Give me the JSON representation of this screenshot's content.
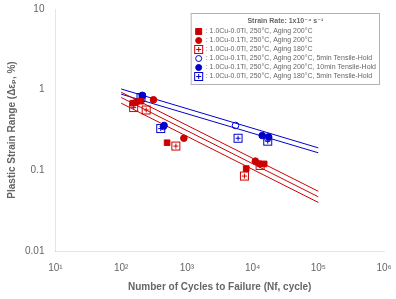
{
  "chart_data": {
    "type": "scatter",
    "xlabel": "Number of Cycles to Failure (Nf, cycle)",
    "ylabel": "Plastic Strain Range (Δεₚ, %)",
    "legend_title": "Strain Rate: 1x10⁻⁴ s⁻¹",
    "log": true,
    "grid": false,
    "legend": "upper right",
    "xlim": [
      10,
      1000000
    ],
    "ylim": [
      0.01,
      10
    ],
    "xticks": [
      {
        "value": 10,
        "label": "10¹"
      },
      {
        "value": 100,
        "label": "10²"
      },
      {
        "value": 1000,
        "label": "10³"
      },
      {
        "value": 10000,
        "label": "10⁴"
      },
      {
        "value": 100000,
        "label": "10⁵"
      },
      {
        "value": 1000000,
        "label": "10⁶"
      }
    ],
    "yticks": [
      0.01,
      0.1,
      1,
      10
    ],
    "series": [
      {
        "name": ": 1.0Cu-0.0Ti, 250°C, Aging 200°C",
        "color": "#cc0000",
        "marker": "filled_square",
        "x": [
          150,
          200,
          500,
          8000,
          15000
        ],
        "values": [
          0.68,
          0.72,
          0.22,
          0.105,
          0.12
        ]
      },
      {
        "name": ": 1.0Cu-0.1Ti, 250°C, Aging 200°C",
        "color": "#cc0000",
        "marker": "filled_circle",
        "x": [
          170,
          310,
          900,
          11000,
          13000
        ],
        "values": [
          0.7,
          0.75,
          0.25,
          0.13,
          0.12
        ]
      },
      {
        "name": ": 1.0Cu-0.0Ti, 250°C, Aging 180°C",
        "color": "#cc0000",
        "marker": "crossed_square",
        "x": [
          155,
          240,
          680,
          7500,
          13000
        ],
        "values": [
          0.6,
          0.56,
          0.2,
          0.085,
          0.115
        ]
      },
      {
        "name": ": 1.0Cu-0.1Ti, 250°C, Aging 200°C, 5min Tensile-Hold",
        "color": "#0000cc",
        "marker": "open_circle",
        "x": [
          210,
          440,
          5500,
          17000
        ],
        "values": [
          0.83,
          0.35,
          0.36,
          0.25
        ]
      },
      {
        "name": ": 1.0Cu-0.1Ti, 250°C, Aging 200°C, 10min Tensile-Hold",
        "color": "#0000cc",
        "marker": "filled_circle",
        "x": [
          210,
          450,
          14000,
          17500
        ],
        "values": [
          0.85,
          0.36,
          0.27,
          0.26
        ]
      },
      {
        "name": ": 1.0Cu-0.0Ti, 250°C, Aging 180°C, 5min Tensile-Hold",
        "color": "#0000cc",
        "marker": "crossed_square",
        "x": [
          200,
          400,
          6000,
          17000
        ],
        "values": [
          0.8,
          0.33,
          0.25,
          0.23
        ]
      },
      {
        "type": "line",
        "color": "#cc0000",
        "x": [
          100,
          100000
        ],
        "values": [
          0.93,
          0.055
        ]
      },
      {
        "type": "line",
        "color": "#cc0000",
        "x": [
          100,
          100000
        ],
        "values": [
          0.8,
          0.047
        ]
      },
      {
        "type": "line",
        "color": "#cc0000",
        "x": [
          100,
          100000
        ],
        "values": [
          0.68,
          0.04
        ]
      },
      {
        "type": "line",
        "color": "#0000cc",
        "x": [
          100,
          100000
        ],
        "values": [
          1.02,
          0.19
        ]
      },
      {
        "type": "line",
        "color": "#0000cc",
        "x": [
          100,
          100000
        ],
        "values": [
          0.88,
          0.165
        ]
      }
    ]
  }
}
